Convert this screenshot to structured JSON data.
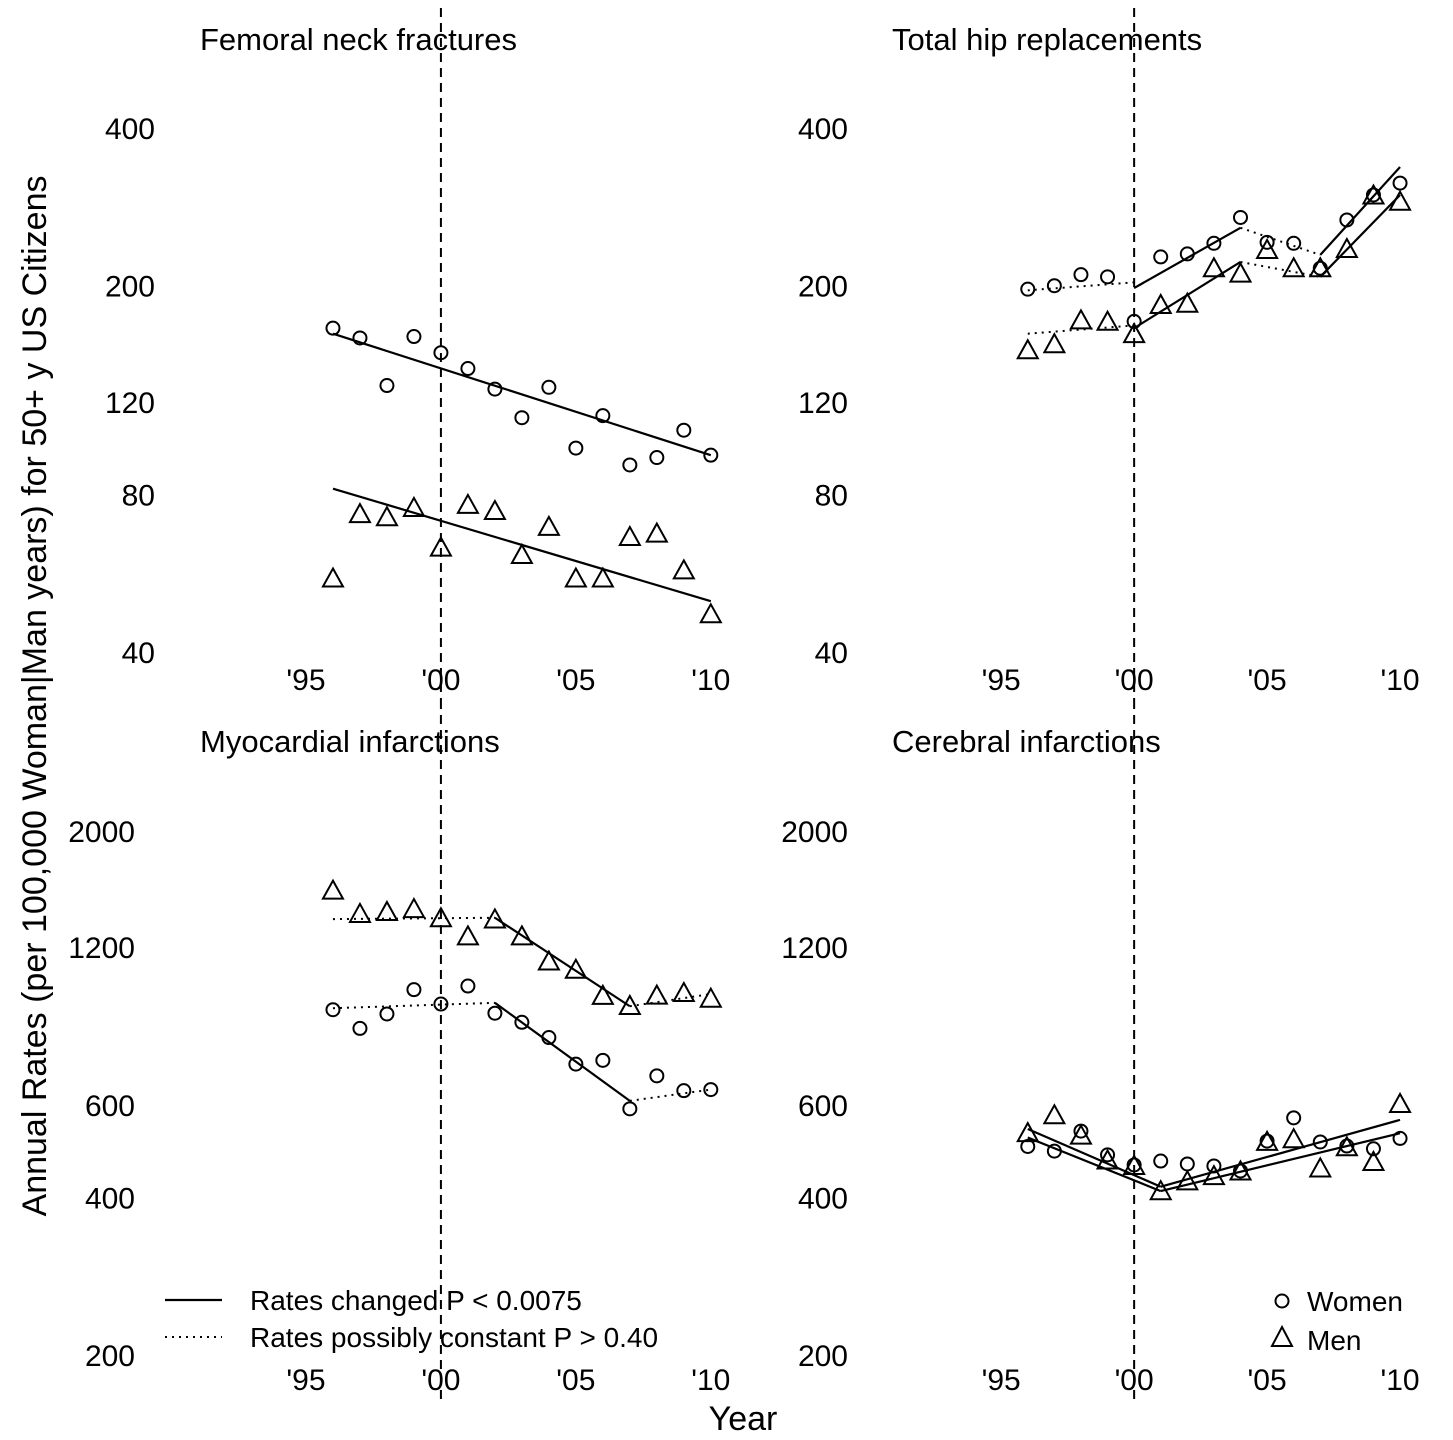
{
  "figure": {
    "ylabel": "Annual Rates (per 100,000 Woman|Man years) for 50+ y US Citizens",
    "xlabel": "Year"
  },
  "legend_lines": {
    "solid": "Rates changed P < 0.0075",
    "dotted": "Rates possibly constant P > 0.40"
  },
  "legend_markers": {
    "women": "Women",
    "men": "Men"
  },
  "colors": {
    "ink": "#000000",
    "background": "#ffffff"
  },
  "chart_data": [
    {
      "type": "scatter",
      "title": "Femoral neck fractures",
      "scale": "log",
      "xlim": [
        1993.0,
        2010.6
      ],
      "ylim": [
        40,
        400
      ],
      "x_ticks": [
        1995,
        2000,
        2005,
        2010
      ],
      "x_tick_labels": [
        "'95",
        "'00",
        "'05",
        "'10"
      ],
      "y_ticks": [
        40,
        80,
        120,
        200,
        400
      ],
      "y_tick_labels": [
        "40",
        "80",
        "120",
        "200",
        "400"
      ],
      "reference_line_x": 2000,
      "series": [
        {
          "name": "Women",
          "marker": "circle",
          "x": [
            1996,
            1997,
            1998,
            1999,
            2000,
            2001,
            2002,
            2003,
            2004,
            2005,
            2006,
            2007,
            2008,
            2009,
            2010
          ],
          "y": [
            166,
            159,
            129,
            160,
            149,
            139,
            127,
            112,
            128,
            98,
            113,
            91,
            94,
            106,
            95
          ],
          "fits": [
            {
              "style": "solid",
              "x": [
                1996,
                2010
              ],
              "y": [
                162,
                95
              ]
            }
          ]
        },
        {
          "name": "Men",
          "marker": "triangle",
          "x": [
            1996,
            1997,
            1998,
            1999,
            2000,
            2001,
            2002,
            2003,
            2004,
            2005,
            2006,
            2007,
            2008,
            2009,
            2010
          ],
          "y": [
            55,
            73,
            72,
            75,
            63,
            76,
            74,
            61,
            69,
            55,
            55,
            66,
            67,
            57,
            47
          ],
          "fits": [
            {
              "style": "solid",
              "x": [
                1996,
                2010
              ],
              "y": [
                82,
                50
              ]
            }
          ]
        }
      ]
    },
    {
      "type": "scatter",
      "title": "Total hip replacements",
      "scale": "log",
      "xlim": [
        1993.0,
        2010.6
      ],
      "ylim": [
        40,
        400
      ],
      "x_ticks": [
        1995,
        2000,
        2005,
        2010
      ],
      "x_tick_labels": [
        "'95",
        "'00",
        "'05",
        "'10"
      ],
      "y_ticks": [
        40,
        80,
        120,
        200,
        400
      ],
      "y_tick_labels": [
        "40",
        "80",
        "120",
        "200",
        "400"
      ],
      "reference_line_x": 2000,
      "series": [
        {
          "name": "Women",
          "marker": "circle",
          "x": [
            1996,
            1997,
            1998,
            1999,
            2000,
            2001,
            2002,
            2003,
            2004,
            2005,
            2006,
            2007,
            2008,
            2009,
            2010
          ],
          "y": [
            197,
            200,
            210,
            208,
            171,
            227,
            230,
            241,
            270,
            242,
            241,
            216,
            267,
            298,
            314
          ],
          "fits": [
            {
              "style": "dotted",
              "x": [
                1996,
                2000
              ],
              "y": [
                196,
                203
              ]
            },
            {
              "style": "solid",
              "x": [
                2000,
                2004
              ],
              "y": [
                198,
                258
              ]
            },
            {
              "style": "dotted",
              "x": [
                2004,
                2007
              ],
              "y": [
                258,
                229
              ]
            },
            {
              "style": "solid",
              "x": [
                2007,
                2010
              ],
              "y": [
                229,
                337
              ]
            }
          ]
        },
        {
          "name": "Men",
          "marker": "triangle",
          "x": [
            1996,
            1997,
            1998,
            1999,
            2000,
            2001,
            2002,
            2003,
            2004,
            2005,
            2006,
            2007,
            2008,
            2009,
            2010
          ],
          "y": [
            150,
            154,
            171,
            170,
            161,
            183,
            184,
            215,
            210,
            233,
            215,
            215,
            234,
            296,
            288
          ],
          "fits": [
            {
              "style": "dotted",
              "x": [
                1996,
                2000
              ],
              "y": [
                162,
                168
              ]
            },
            {
              "style": "solid",
              "x": [
                2000,
                2004
              ],
              "y": [
                166,
                222
              ]
            },
            {
              "style": "dotted",
              "x": [
                2004,
                2007
              ],
              "y": [
                222,
                208
              ]
            },
            {
              "style": "solid",
              "x": [
                2007,
                2010
              ],
              "y": [
                208,
                298
              ]
            }
          ]
        }
      ]
    },
    {
      "type": "scatter",
      "title": "Myocardial infarctions",
      "scale": "log",
      "xlim": [
        1993.0,
        2010.6
      ],
      "ylim": [
        200,
        2000
      ],
      "x_ticks": [
        1995,
        2000,
        2005,
        2010
      ],
      "x_tick_labels": [
        "'95",
        "'00",
        "'05",
        "'10"
      ],
      "y_ticks": [
        200,
        400,
        600,
        1200,
        2000
      ],
      "y_tick_labels": [
        "200",
        "400",
        "600",
        "1200",
        "2000"
      ],
      "reference_line_x": 2000,
      "series": [
        {
          "name": "Women",
          "marker": "circle",
          "x": [
            1996,
            1997,
            1998,
            1999,
            2000,
            2001,
            2002,
            2003,
            2004,
            2005,
            2006,
            2007,
            2008,
            2009,
            2010
          ],
          "y": [
            912,
            840,
            895,
            996,
            935,
            1012,
            898,
            863,
            807,
            718,
            730,
            590,
            682,
            639,
            642
          ],
          "fits": [
            {
              "style": "dotted",
              "x": [
                1996,
                2002
              ],
              "y": [
                918,
                940
              ]
            },
            {
              "style": "solid",
              "x": [
                2002,
                2007
              ],
              "y": [
                940,
                611
              ]
            },
            {
              "style": "dotted",
              "x": [
                2007,
                2010
              ],
              "y": [
                611,
                642
              ]
            }
          ]
        },
        {
          "name": "Men",
          "marker": "triangle",
          "x": [
            1996,
            1997,
            1998,
            1999,
            2000,
            2001,
            2002,
            2003,
            2004,
            2005,
            2006,
            2007,
            2008,
            2009,
            2010
          ],
          "y": [
            1532,
            1383,
            1395,
            1413,
            1357,
            1253,
            1350,
            1253,
            1122,
            1082,
            965,
            923,
            966,
            977,
            953
          ],
          "fits": [
            {
              "style": "dotted",
              "x": [
                1996,
                2002
              ],
              "y": [
                1358,
                1366
              ]
            },
            {
              "style": "solid",
              "x": [
                2002,
                2007
              ],
              "y": [
                1366,
                926
              ]
            },
            {
              "style": "dotted",
              "x": [
                2007,
                2010
              ],
              "y": [
                926,
                977
              ]
            }
          ]
        }
      ]
    },
    {
      "type": "scatter",
      "title": "Cerebral infarctions",
      "scale": "log",
      "xlim": [
        1993.0,
        2010.6
      ],
      "ylim": [
        200,
        2000
      ],
      "x_ticks": [
        1995,
        2000,
        2005,
        2010
      ],
      "x_tick_labels": [
        "'95",
        "'00",
        "'05",
        "'10"
      ],
      "y_ticks": [
        200,
        400,
        600,
        1200,
        2000
      ],
      "y_tick_labels": [
        "200",
        "400",
        "600",
        "1200",
        "2000"
      ],
      "reference_line_x": 2000,
      "series": [
        {
          "name": "Women",
          "marker": "circle",
          "x": [
            1996,
            1997,
            1998,
            1999,
            2000,
            2001,
            2002,
            2003,
            2004,
            2005,
            2006,
            2007,
            2008,
            2009,
            2010
          ],
          "y": [
            500,
            490,
            535,
            482,
            461,
            469,
            463,
            459,
            449,
            512,
            567,
            510,
            501,
            495,
            518
          ],
          "fits": [
            {
              "style": "solid",
              "x": [
                1996,
                2001
              ],
              "y": [
                540,
                419
              ]
            },
            {
              "style": "solid",
              "x": [
                2001,
                2010
              ],
              "y": [
                419,
                562
              ]
            }
          ]
        },
        {
          "name": "Men",
          "marker": "triangle",
          "x": [
            1996,
            1997,
            1998,
            1999,
            2000,
            2001,
            2002,
            2003,
            2004,
            2005,
            2006,
            2007,
            2008,
            2009,
            2010
          ],
          "y": [
            528,
            571,
            522,
            468,
            457,
            409,
            427,
            437,
            446,
            508,
            514,
            452,
            496,
            465,
            600
          ],
          "fits": [
            {
              "style": "solid",
              "x": [
                1996,
                2001
              ],
              "y": [
                520,
                411
              ]
            },
            {
              "style": "solid",
              "x": [
                2001,
                2010
              ],
              "y": [
                411,
                530
              ]
            }
          ]
        }
      ]
    }
  ]
}
